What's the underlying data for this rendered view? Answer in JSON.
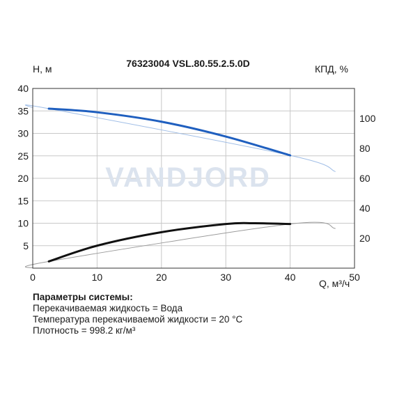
{
  "chart_data": {
    "type": "line",
    "title": "76323004 VSL.80.55.2.5.0D",
    "xlabel": "Q, м³/ч",
    "ylabel_left": "H, м",
    "ylabel_right": "КПД, %",
    "xlim": [
      0,
      50
    ],
    "ylim_left": [
      0,
      40
    ],
    "ylim_right": [
      0,
      120
    ],
    "x_ticks": [
      0,
      10,
      20,
      30,
      40,
      50
    ],
    "y_ticks_left": [
      5,
      10,
      15,
      20,
      25,
      30,
      35,
      40
    ],
    "y_ticks_right": [
      20,
      40,
      60,
      80,
      100
    ],
    "grid": true,
    "watermark": "VANDJORD",
    "series": [
      {
        "axis": "left",
        "color": "#1f5fbf",
        "values": [
          [
            2.5,
            35.5
          ],
          [
            10,
            34.7
          ],
          [
            20,
            32.6
          ],
          [
            30,
            29.3
          ],
          [
            40,
            25.1
          ]
        ]
      },
      {
        "axis": "left",
        "color": "#9fbde6",
        "values": [
          [
            0,
            35.7
          ],
          [
            2.5,
            35.5
          ],
          [
            40,
            25.1
          ],
          [
            47,
            21.5
          ]
        ]
      },
      {
        "axis": "right",
        "color": "#111111",
        "values": [
          [
            2.5,
            4.5
          ],
          [
            10,
            15
          ],
          [
            20,
            24
          ],
          [
            30,
            29.5
          ],
          [
            34.5,
            30
          ],
          [
            40,
            29.5
          ]
        ]
      },
      {
        "axis": "right",
        "color": "#9a9a9a",
        "values": [
          [
            0,
            0
          ],
          [
            2.5,
            4.5
          ],
          [
            40,
            29.5
          ],
          [
            47,
            26.5
          ]
        ]
      }
    ]
  },
  "params": {
    "title": "Параметры системы:",
    "lines": [
      "Перекачиваемая жидкость = Вода",
      "Температура перекачиваемой жидкости = 20 °C",
      "Плотность = 998.2 кг/м³"
    ]
  }
}
